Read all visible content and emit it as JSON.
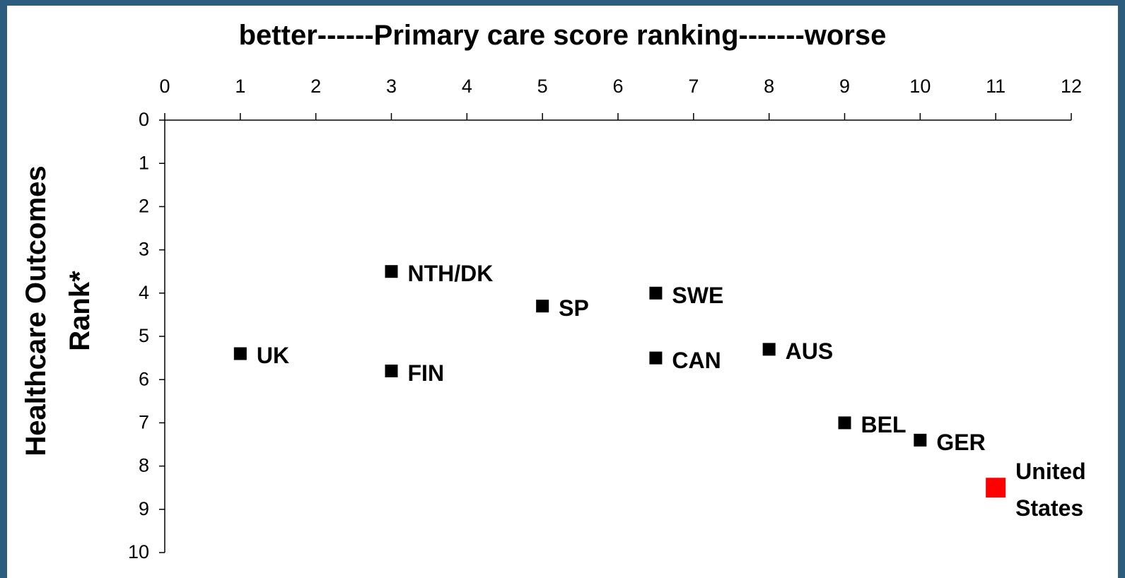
{
  "chart_data": {
    "type": "scatter",
    "title": "better------Primary care score ranking-------worse",
    "y_label": "Healthcare Outcomes Rank*",
    "x": [
      1,
      3,
      3,
      5,
      6.5,
      6.5,
      8,
      9,
      10,
      11
    ],
    "values": [
      5.4,
      3.5,
      5.8,
      4.3,
      4,
      5.5,
      5.3,
      7,
      7.4,
      8.5
    ],
    "point_labels": [
      "UK",
      "NTH/DK",
      "FIN",
      "SP",
      "SWE",
      "CAN",
      "AUS",
      "BEL",
      "GER",
      "United States"
    ],
    "colors": [
      "#000000",
      "#000000",
      "#000000",
      "#000000",
      "#000000",
      "#000000",
      "#000000",
      "#000000",
      "#000000",
      "#ff0000"
    ],
    "color": "#000000",
    "xlim": [
      0,
      12
    ],
    "xticks": [
      0,
      1,
      2,
      3,
      4,
      5,
      6,
      7,
      8,
      9,
      10,
      11,
      12
    ],
    "ylim": [
      0,
      10
    ],
    "yticks": [
      0,
      1,
      2,
      3,
      4,
      5,
      6,
      7,
      8,
      9,
      10
    ],
    "y_inverted": true,
    "x_axis_position": "top",
    "grid": false
  }
}
